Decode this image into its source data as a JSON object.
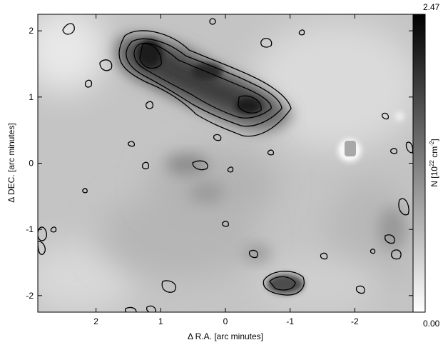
{
  "chart_data": {
    "type": "heatmap",
    "title": "",
    "xlabel": "Δ R.A. [arc minutes]",
    "ylabel": "Δ DEC. [arc minutes]",
    "xlim": [
      2.9,
      -2.9
    ],
    "ylim": [
      -2.25,
      2.25
    ],
    "x_ticks": [
      2,
      1,
      0,
      -1,
      -2
    ],
    "y_ticks": [
      -2,
      -1,
      0,
      1,
      2
    ],
    "colorbar": {
      "label_prefix": "N [10",
      "label_exp1": "22",
      "label_mid": " cm",
      "label_exp2": "-2",
      "label_suffix": "]",
      "min": 0.0,
      "max": 2.47,
      "min_label": "0.00",
      "max_label": "2.47",
      "colormap": "grayscale, white to black"
    },
    "contour_color": "#000000",
    "features": [
      {
        "kind": "filament",
        "x": [
          1.3,
          0.9,
          0.5,
          0.1,
          -0.3,
          -0.7
        ],
        "y": [
          1.75,
          1.45,
          1.3,
          1.05,
          0.85,
          0.75
        ],
        "peak": 2.3
      },
      {
        "kind": "clump",
        "x": -0.9,
        "y": -1.85,
        "peak": 1.7
      },
      {
        "kind": "clump",
        "x": 0.6,
        "y": 0.0,
        "peak": 1.2
      },
      {
        "kind": "clump",
        "x": 0.3,
        "y": -0.4,
        "peak": 1.0
      },
      {
        "kind": "clump",
        "x": -2.5,
        "y": -1.2,
        "peak": 0.9
      },
      {
        "kind": "star",
        "x": -1.9,
        "y": 0.2
      }
    ]
  }
}
